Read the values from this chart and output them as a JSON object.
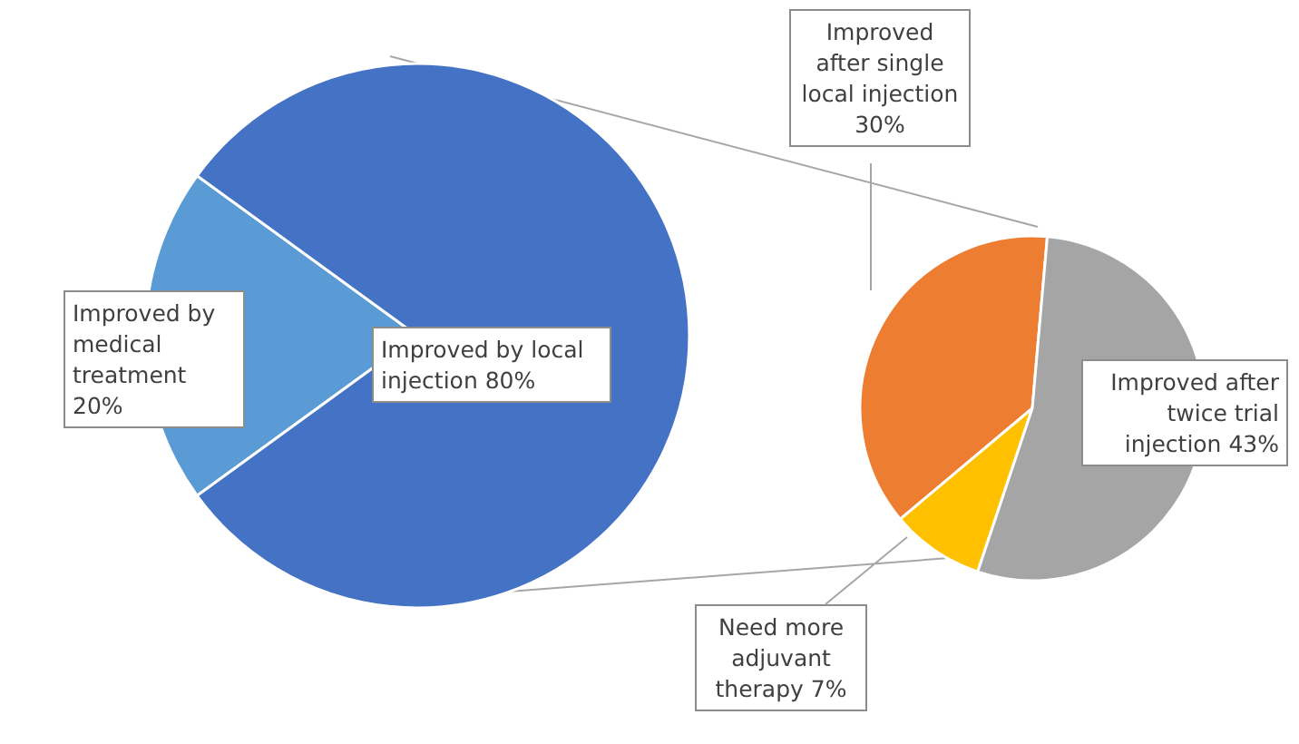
{
  "chart_data": [
    {
      "type": "pie",
      "categories": [
        "Improved by medical treatment",
        "Improved by local injection"
      ],
      "values": [
        20,
        80
      ],
      "colors": [
        "#5b9bd5",
        "#4472c4"
      ],
      "value_labels": [
        "20%",
        "80%"
      ]
    },
    {
      "type": "pie",
      "categories": [
        "Improved after single local injection",
        "Need more adjuvant therapy",
        "Improved after twice trial injection"
      ],
      "values": [
        30,
        7,
        43
      ],
      "colors": [
        "#ed7d31",
        "#ffc000",
        "#a5a5a5"
      ],
      "value_labels": [
        "30%",
        "7%",
        "43%"
      ]
    }
  ]
}
